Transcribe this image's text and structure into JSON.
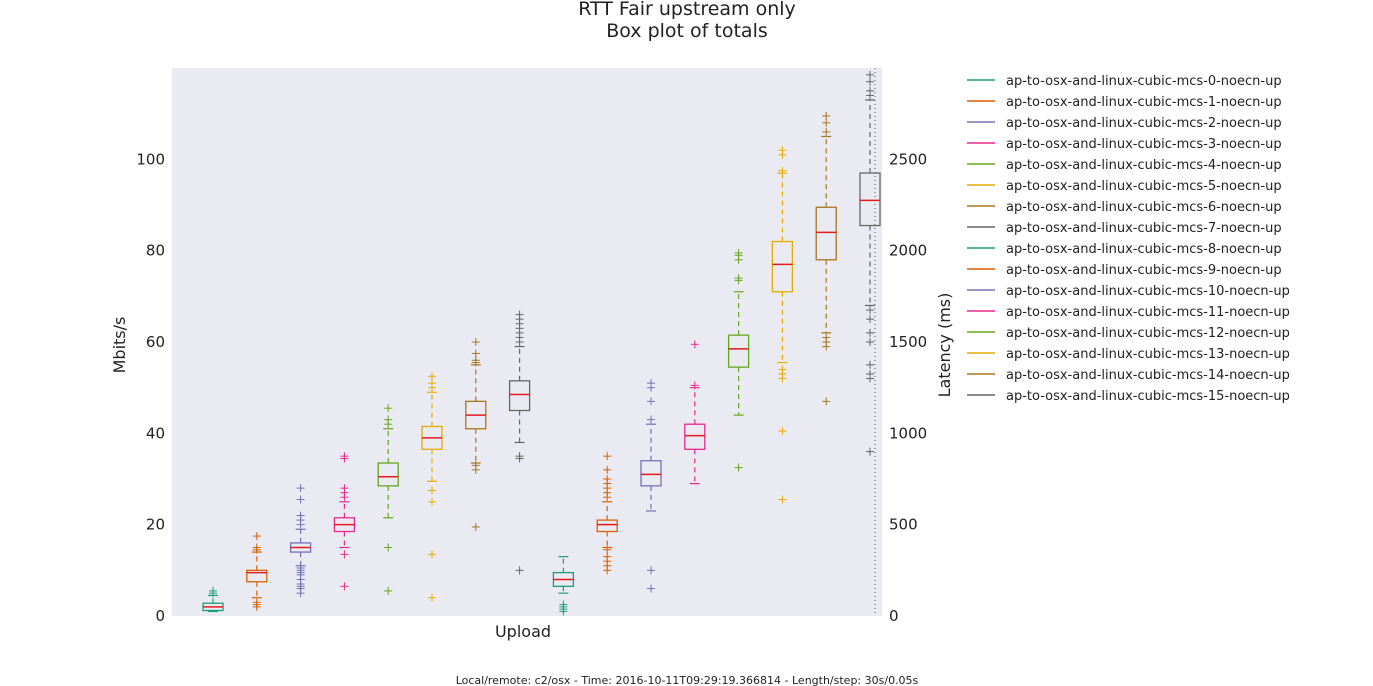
{
  "chart_data": {
    "type": "box",
    "title": "RTT Fair upstream only",
    "subtitle": "Box plot of totals",
    "xlabel": "Upload",
    "ylabel": "Mbits/s",
    "y2label": "Latency (ms)",
    "footer": "Local/remote: c2/osx - Time: 2016-10-11T09:29:19.366814 - Length/step: 30s/0.05s",
    "ylim": [
      0,
      120
    ],
    "y2lim": [
      0,
      3000
    ],
    "yticks": [
      0,
      20,
      40,
      60,
      80,
      100
    ],
    "y2ticks": [
      0,
      500,
      1000,
      1500,
      2000,
      2500
    ],
    "grid": false,
    "legend_position": "right",
    "series": [
      {
        "name": "ap-to-osx-and-linux-cubic-mcs-0-noecn-up",
        "color": "#1b9e77",
        "whislo": 1,
        "q1": 1.2,
        "median": 2,
        "q3": 2.8,
        "whishi": 4.5,
        "fliers": [
          5,
          5.5
        ]
      },
      {
        "name": "ap-to-osx-and-linux-cubic-mcs-1-noecn-up",
        "color": "#d95f02",
        "whislo": 4,
        "q1": 7.5,
        "median": 9.5,
        "q3": 10,
        "whishi": 14,
        "fliers": [
          2,
          2.5,
          3,
          14.5,
          15,
          17.5
        ]
      },
      {
        "name": "ap-to-osx-and-linux-cubic-mcs-2-noecn-up",
        "color": "#7570b3",
        "whislo": 11,
        "q1": 14,
        "median": 15,
        "q3": 16,
        "whishi": 19,
        "fliers": [
          5,
          6,
          6.5,
          7,
          8,
          9,
          9.5,
          10,
          10.5,
          20,
          21,
          22,
          25.5,
          28
        ]
      },
      {
        "name": "ap-to-osx-and-linux-cubic-mcs-3-noecn-up",
        "color": "#e7298a",
        "whislo": 15,
        "q1": 18.5,
        "median": 20,
        "q3": 21.5,
        "whishi": 25,
        "fliers": [
          6.5,
          13.5,
          26,
          27,
          28,
          34.5,
          35
        ]
      },
      {
        "name": "ap-to-osx-and-linux-cubic-mcs-4-noecn-up",
        "color": "#66a61e",
        "whislo": 21.5,
        "q1": 28.5,
        "median": 30.5,
        "q3": 33.5,
        "whishi": 41,
        "fliers": [
          5.5,
          15,
          42,
          43,
          45.5
        ]
      },
      {
        "name": "ap-to-osx-and-linux-cubic-mcs-5-noecn-up",
        "color": "#e6ab02",
        "whislo": 29.5,
        "q1": 36.5,
        "median": 39,
        "q3": 41.5,
        "whishi": 49,
        "fliers": [
          4,
          13.5,
          25,
          27.5,
          50,
          51,
          52.5
        ]
      },
      {
        "name": "ap-to-osx-and-linux-cubic-mcs-6-noecn-up",
        "color": "#a6761d",
        "whislo": 33.5,
        "q1": 41,
        "median": 44,
        "q3": 47,
        "whishi": 55,
        "fliers": [
          19.5,
          32,
          33,
          55.5,
          56,
          57.5,
          60
        ]
      },
      {
        "name": "ap-to-osx-and-linux-cubic-mcs-7-noecn-up",
        "color": "#666666",
        "whislo": 38,
        "q1": 45,
        "median": 48.5,
        "q3": 51.5,
        "whishi": 59,
        "fliers": [
          10,
          34.5,
          35,
          60,
          61,
          62,
          63,
          64,
          65,
          66
        ]
      },
      {
        "name": "ap-to-osx-and-linux-cubic-mcs-8-noecn-up",
        "color": "#1b9e77",
        "whislo": 5,
        "q1": 6.5,
        "median": 8,
        "q3": 9.5,
        "whishi": 13,
        "fliers": [
          1,
          1.5,
          2,
          2.5
        ]
      },
      {
        "name": "ap-to-osx-and-linux-cubic-mcs-9-noecn-up",
        "color": "#d95f02",
        "whislo": 15,
        "q1": 18.5,
        "median": 20,
        "q3": 21,
        "whishi": 25,
        "fliers": [
          10,
          11,
          12,
          13,
          14.5,
          26,
          27,
          28,
          29,
          30,
          32,
          35
        ]
      },
      {
        "name": "ap-to-osx-and-linux-cubic-mcs-10-noecn-up",
        "color": "#7570b3",
        "whislo": 23,
        "q1": 28.5,
        "median": 31,
        "q3": 34,
        "whishi": 42,
        "fliers": [
          6,
          10,
          43,
          47,
          50,
          51
        ]
      },
      {
        "name": "ap-to-osx-and-linux-cubic-mcs-11-noecn-up",
        "color": "#e7298a",
        "whislo": 29,
        "q1": 36.5,
        "median": 39.5,
        "q3": 42,
        "whishi": 50,
        "fliers": [
          50.5,
          59.5
        ]
      },
      {
        "name": "ap-to-osx-and-linux-cubic-mcs-12-noecn-up",
        "color": "#66a61e",
        "whislo": 44,
        "q1": 54.5,
        "median": 58.5,
        "q3": 61.5,
        "whishi": 71,
        "fliers": [
          32.5,
          73.5,
          74,
          78,
          79,
          79.5
        ]
      },
      {
        "name": "ap-to-osx-and-linux-cubic-mcs-13-noecn-up",
        "color": "#e6ab02",
        "whislo": 55.5,
        "q1": 71,
        "median": 77,
        "q3": 82,
        "whishi": 97,
        "fliers": [
          25.5,
          40.5,
          52,
          53,
          54,
          97.5,
          101,
          102
        ]
      },
      {
        "name": "ap-to-osx-and-linux-cubic-mcs-14-noecn-up",
        "color": "#a6761d",
        "whislo": 62,
        "q1": 78,
        "median": 84,
        "q3": 89.5,
        "whishi": 105,
        "fliers": [
          47,
          59,
          60,
          61,
          106,
          108,
          109.5
        ]
      },
      {
        "name": "ap-to-osx-and-linux-cubic-mcs-15-noecn-up",
        "color": "#666666",
        "whislo": 68,
        "q1": 85.5,
        "median": 91,
        "q3": 97,
        "whishi": 113,
        "fliers": [
          36,
          52,
          53,
          55,
          60,
          62,
          65,
          67,
          114,
          115,
          117,
          118.5
        ]
      }
    ]
  }
}
